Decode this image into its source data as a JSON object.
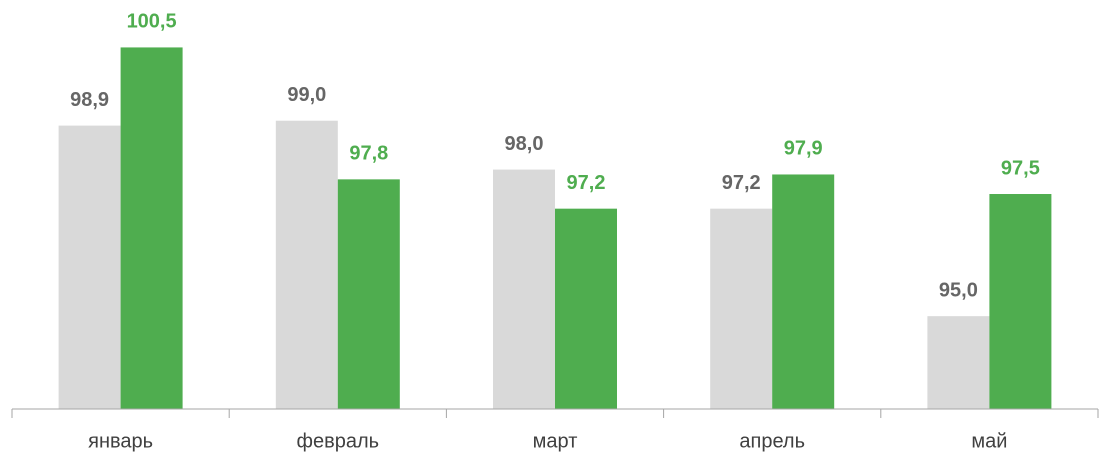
{
  "chart_data": {
    "type": "bar",
    "categories": [
      "январь",
      "февраль",
      "март",
      "апрель",
      "май"
    ],
    "series": [
      {
        "color": "#d9d9d9",
        "label_color": "#666666",
        "values": [
          98.9,
          99.0,
          98.0,
          97.2,
          95.0
        ],
        "value_labels": [
          "98,9",
          "99,0",
          "98,0",
          "97,2",
          "95,0"
        ]
      },
      {
        "color": "#4fad4f",
        "label_color": "#4fad4f",
        "values": [
          100.5,
          97.8,
          97.2,
          97.9,
          97.5
        ],
        "value_labels": [
          "100,5",
          "97,8",
          "97,2",
          "97,9",
          "97,5"
        ]
      }
    ],
    "ylim": [
      93.1,
      101.0
    ]
  }
}
